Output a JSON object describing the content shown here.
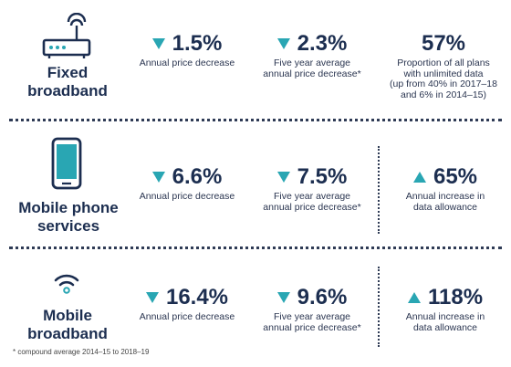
{
  "rows": [
    {
      "category": [
        "Fixed",
        "broadband"
      ],
      "icon": "router-icon",
      "stats": [
        {
          "direction": "down",
          "value": "1.5%",
          "desc": [
            "Annual price decrease"
          ]
        },
        {
          "direction": "down",
          "value": "2.3%",
          "desc": [
            "Five  year average",
            "annual price decrease*"
          ]
        },
        {
          "direction": "none",
          "value": "57%",
          "desc": [
            "Proportion of all plans",
            "with unlimited data",
            "(up from 40% in 2017–18",
            "and 6% in 2014–15)"
          ]
        }
      ]
    },
    {
      "category": [
        "Mobile phone",
        "services"
      ],
      "icon": "mobile-phone-icon",
      "stats": [
        {
          "direction": "down",
          "value": "6.6%",
          "desc": [
            "Annual price decrease"
          ]
        },
        {
          "direction": "down",
          "value": "7.5%",
          "desc": [
            "Five year average",
            "annual price decrease*"
          ]
        },
        {
          "direction": "up",
          "value": "65%",
          "desc": [
            "Annual increase in",
            "data allowance"
          ]
        }
      ]
    },
    {
      "category": [
        "Mobile",
        "broadband"
      ],
      "icon": "wifi-icon",
      "stats": [
        {
          "direction": "down",
          "value": "16.4%",
          "desc": [
            "Annual price decrease"
          ]
        },
        {
          "direction": "down",
          "value": "9.6%",
          "desc": [
            "Five year average",
            "annual price decrease*"
          ]
        },
        {
          "direction": "up",
          "value": "118%",
          "desc": [
            "Annual increase in",
            "data allowance"
          ]
        }
      ]
    }
  ],
  "footnote": "* compound average 2014–15 to 2018–19",
  "colors": {
    "accent": "#29a6b3",
    "text": "#1c2e50"
  }
}
